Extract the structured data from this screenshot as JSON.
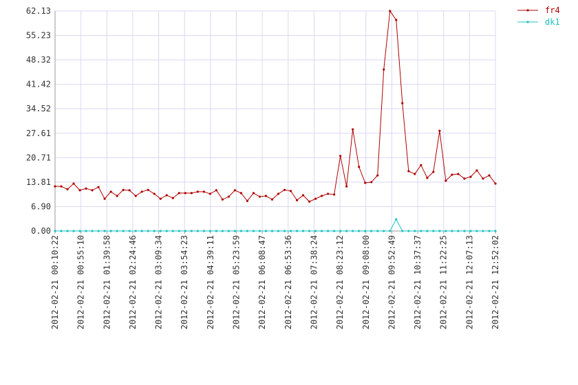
{
  "chart_data": {
    "type": "line",
    "grid": true,
    "legend": "top-right",
    "xlim": [
      622,
      46322
    ],
    "ylim": [
      0,
      62.13
    ],
    "yticks": [
      {
        "value": 0,
        "label": "0.00"
      },
      {
        "value": 6.9,
        "label": "6.90"
      },
      13.81,
      20.71,
      27.61,
      34.52,
      41.42,
      48.32,
      55.23,
      62.13
    ],
    "xticks": [
      {
        "value": 622,
        "label": "2012-02-21 00:10:22"
      },
      {
        "value": 3310,
        "label": "2012-02-21 00:55:10"
      },
      {
        "value": 5998,
        "label": "2012-02-21 01:39:58"
      },
      {
        "value": 8686,
        "label": "2012-02-21 02:24:46"
      },
      {
        "value": 11374,
        "label": "2012-02-21 03:09:34"
      },
      {
        "value": 14063,
        "label": "2012-02-21 03:54:23"
      },
      {
        "value": 16751,
        "label": "2012-02-21 04:39:11"
      },
      {
        "value": 19439,
        "label": "2012-02-21 05:23:59"
      },
      {
        "value": 22127,
        "label": "2012-02-21 06:08:47"
      },
      {
        "value": 24816,
        "label": "2012-02-21 06:53:36"
      },
      {
        "value": 27504,
        "label": "2012-02-21 07:38:24"
      },
      {
        "value": 30192,
        "label": "2012-02-21 08:23:12"
      },
      {
        "value": 32880,
        "label": "2012-02-21 09:08:00"
      },
      {
        "value": 35569,
        "label": "2012-02-21 09:52:49"
      },
      {
        "value": 38257,
        "label": "2012-02-21 10:37:37"
      },
      {
        "value": 40945,
        "label": "2012-02-21 11:22:25"
      },
      {
        "value": 43633,
        "label": "2012-02-21 12:07:13"
      },
      {
        "value": 46322,
        "label": "2012-02-21 12:52:02"
      }
    ],
    "x": [
      622,
      1266,
      1909,
      2553,
      3197,
      3840,
      4484,
      5128,
      5771,
      6415,
      7059,
      7703,
      8346,
      8990,
      9634,
      10277,
      10921,
      11564,
      12208,
      12852,
      13495,
      14139,
      14783,
      15426,
      16070,
      16714,
      17357,
      18001,
      18645,
      19288,
      19932,
      20575,
      21219,
      21863,
      22507,
      23150,
      23794,
      24438,
      25081,
      25725,
      26368,
      27012,
      27656,
      28299,
      28943,
      29587,
      30230,
      30874,
      31518,
      32161,
      32805,
      33449,
      34092,
      34736,
      35380,
      36023,
      36667,
      37311,
      37954,
      38598,
      39242,
      39885,
      40529,
      41172,
      41816,
      42460,
      43103,
      43747,
      44391,
      45034,
      45678,
      46322
    ],
    "series": [
      {
        "name": "fr4",
        "color": "#b00000",
        "values": [
          12.6,
          12.6,
          11.8,
          13.4,
          11.5,
          12.0,
          11.5,
          12.4,
          9.1,
          11.1,
          9.9,
          11.6,
          11.5,
          9.9,
          11.1,
          11.6,
          10.5,
          9.1,
          10.1,
          9.3,
          10.7,
          10.7,
          10.7,
          11.1,
          11.1,
          10.5,
          11.5,
          8.9,
          9.7,
          11.5,
          10.7,
          8.5,
          10.7,
          9.7,
          9.9,
          8.9,
          10.5,
          11.6,
          11.3,
          8.7,
          10.1,
          8.3,
          9.1,
          9.9,
          10.5,
          10.3,
          21.2,
          12.6,
          28.7,
          18.1,
          13.6,
          13.8,
          15.7,
          45.6,
          62.13,
          59.6,
          36.1,
          16.9,
          16.1,
          18.6,
          15.0,
          16.7,
          28.3,
          14.2,
          15.9,
          16.1,
          14.8,
          15.3,
          17.1,
          14.8,
          15.7,
          13.4
        ]
      },
      {
        "name": "dk1",
        "color": "#20c0c0",
        "values": [
          0,
          0,
          0,
          0,
          0,
          0,
          0,
          0,
          0,
          0,
          0,
          0,
          0,
          0,
          0,
          0,
          0,
          0,
          0,
          0,
          0,
          0,
          0,
          0,
          0,
          0,
          0,
          0,
          0,
          0,
          0,
          0,
          0,
          0,
          0,
          0,
          0,
          0,
          0,
          0,
          0,
          0,
          0,
          0,
          0,
          0,
          0,
          0,
          0,
          0,
          0,
          0,
          0,
          0,
          0,
          3.3,
          0,
          0,
          0,
          0,
          0,
          0,
          0,
          0,
          0,
          0,
          0,
          0,
          0,
          0,
          0,
          0
        ]
      }
    ]
  }
}
